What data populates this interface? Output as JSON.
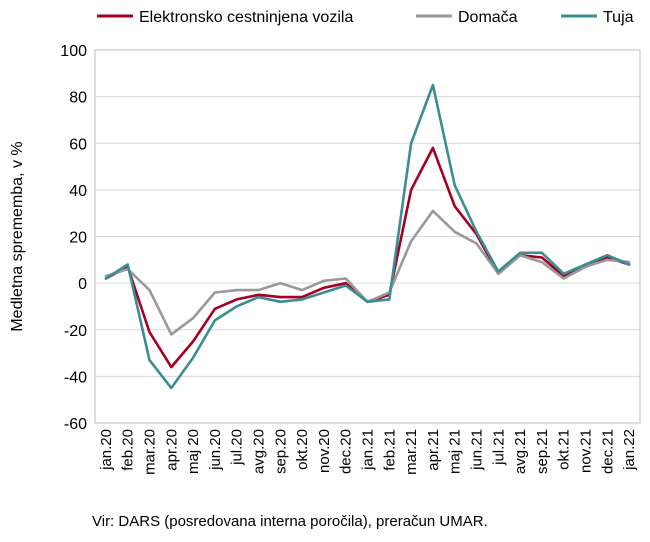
{
  "chart_data": {
    "type": "line",
    "ylabel": "Medletna sprememba, v %",
    "ylim": [
      -60,
      100
    ],
    "yticks": [
      100,
      80,
      60,
      40,
      20,
      0,
      -20,
      -40,
      -60
    ],
    "grid": true,
    "legend_position": "top",
    "categories": [
      "jan.20",
      "feb.20",
      "mar.20",
      "apr.20",
      "maj 20",
      "jun.20",
      "jul.20",
      "avg.20",
      "sep.20",
      "okt.20",
      "nov.20",
      "dec.20",
      "jan.21",
      "feb.21",
      "mar.21",
      "apr.21",
      "maj 21",
      "jun.21",
      "jul.21",
      "avg.21",
      "sep.21",
      "okt.21",
      "nov.21",
      "dec.21",
      "jan.22"
    ],
    "series": [
      {
        "name": "Elektronsko cestninjena vozila",
        "color": "#a50021",
        "values": [
          2,
          7,
          -21,
          -36,
          -25,
          -11,
          -7,
          -5,
          -6,
          -6,
          -2,
          0,
          -8,
          -5,
          40,
          58,
          33,
          21,
          4,
          12,
          11,
          3,
          7,
          11,
          8
        ]
      },
      {
        "name": "Domača",
        "color": "#999999",
        "values": [
          3,
          6,
          -3,
          -22,
          -15,
          -4,
          -3,
          -3,
          0,
          -3,
          1,
          2,
          -8,
          -4,
          18,
          31,
          22,
          17,
          4,
          12,
          9,
          2,
          7,
          10,
          9
        ]
      },
      {
        "name": "Tuja",
        "color": "#3c8c93",
        "values": [
          2,
          8,
          -33,
          -45,
          -32,
          -16,
          -10,
          -6,
          -8,
          -7,
          -4,
          -1,
          -8,
          -7,
          60,
          85,
          42,
          22,
          5,
          13,
          13,
          4,
          8,
          12,
          8
        ]
      }
    ],
    "source": "Vir: DARS (posredovana interna poročila), preračun UMAR."
  }
}
